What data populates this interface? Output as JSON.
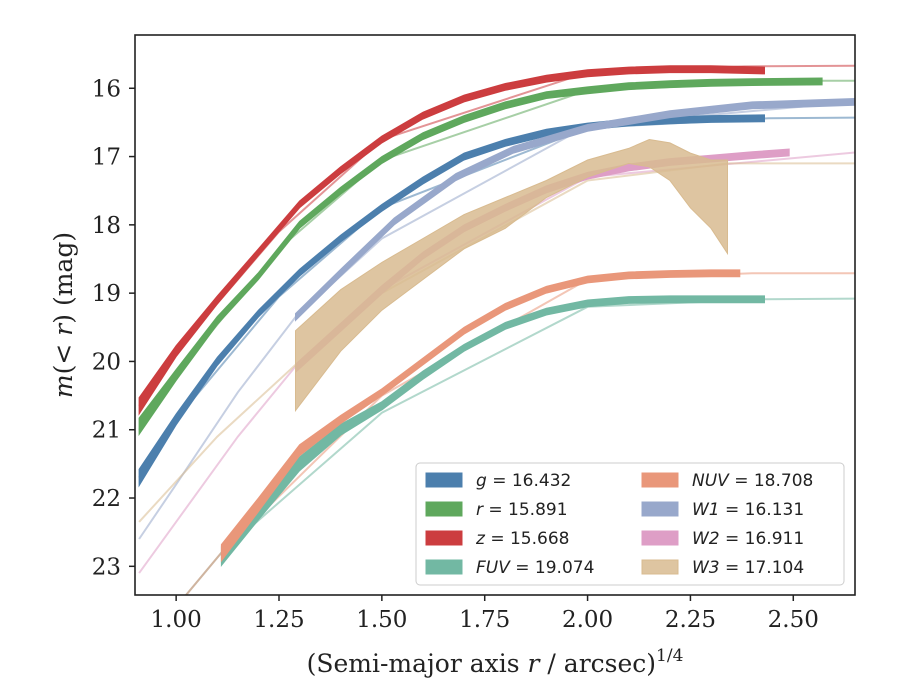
{
  "chart_data": {
    "type": "line",
    "xlabel": "(Semi-major axis r / arcsec)^1/4",
    "ylabel": "m(< r) (mag)",
    "xlim": [
      0.9,
      2.65
    ],
    "ylim": [
      23.42,
      15.22
    ],
    "y_inverted": true,
    "xticks": [
      "1.00",
      "1.25",
      "1.50",
      "1.75",
      "2.00",
      "2.25",
      "2.50"
    ],
    "yticks": [
      "16",
      "17",
      "18",
      "19",
      "20",
      "21",
      "22",
      "23"
    ],
    "grid": false,
    "legend_position": "lower-right",
    "series": [
      {
        "name": "g = 16.432",
        "sym": "g",
        "val": "16.432",
        "color": "#4c7fad",
        "extrap_x": [
          0.91,
          1.0,
          1.25,
          1.5,
          2.0,
          2.44,
          2.65
        ],
        "extrap_y": [
          21.7,
          20.85,
          19.05,
          17.75,
          16.58,
          16.44,
          16.43
        ],
        "x": [
          0.91,
          1.0,
          1.1,
          1.2,
          1.3,
          1.4,
          1.5,
          1.6,
          1.7,
          1.8,
          1.9,
          2.0,
          2.1,
          2.2,
          2.3,
          2.43
        ],
        "y": [
          21.7,
          20.85,
          20.0,
          19.3,
          18.7,
          18.2,
          17.75,
          17.35,
          17.0,
          16.8,
          16.65,
          16.56,
          16.5,
          16.47,
          16.45,
          16.44
        ],
        "band": [
          0.12,
          0.08,
          0.06,
          0.05,
          0.05,
          0.05,
          0.05,
          0.05,
          0.05,
          0.05,
          0.05,
          0.05,
          0.05,
          0.05,
          0.05,
          0.05
        ]
      },
      {
        "name": "r = 15.891",
        "sym": "r",
        "val": "15.891",
        "color": "#5fa85d",
        "extrap_x": [
          0.91,
          1.0,
          1.25,
          1.5,
          2.0,
          2.57,
          2.65
        ],
        "extrap_y": [
          21.0,
          20.2,
          18.35,
          17.05,
          16.03,
          15.89,
          15.89
        ],
        "x": [
          0.91,
          1.0,
          1.1,
          1.2,
          1.3,
          1.4,
          1.5,
          1.6,
          1.7,
          1.8,
          1.9,
          2.0,
          2.1,
          2.2,
          2.3,
          2.4,
          2.57
        ],
        "y": [
          20.95,
          20.2,
          19.4,
          18.75,
          18.0,
          17.5,
          17.05,
          16.7,
          16.45,
          16.25,
          16.1,
          16.03,
          15.97,
          15.94,
          15.92,
          15.91,
          15.9
        ],
        "band": [
          0.12,
          0.08,
          0.06,
          0.05,
          0.05,
          0.05,
          0.05,
          0.05,
          0.05,
          0.05,
          0.05,
          0.05,
          0.05,
          0.05,
          0.05,
          0.05,
          0.05
        ]
      },
      {
        "name": "z = 15.668",
        "sym": "z",
        "val": "15.668",
        "color": "#cc3d3f",
        "extrap_x": [
          0.91,
          1.0,
          1.25,
          1.5,
          2.0,
          2.38,
          2.65
        ],
        "extrap_y": [
          20.65,
          19.85,
          18.1,
          16.75,
          15.77,
          15.68,
          15.67
        ],
        "x": [
          0.91,
          1.0,
          1.1,
          1.2,
          1.3,
          1.4,
          1.5,
          1.6,
          1.7,
          1.8,
          1.9,
          2.0,
          2.1,
          2.2,
          2.3,
          2.43
        ],
        "y": [
          20.65,
          19.85,
          19.1,
          18.4,
          17.7,
          17.2,
          16.75,
          16.4,
          16.15,
          15.98,
          15.86,
          15.78,
          15.74,
          15.72,
          15.72,
          15.74
        ],
        "band": [
          0.12,
          0.08,
          0.06,
          0.05,
          0.05,
          0.05,
          0.05,
          0.05,
          0.05,
          0.05,
          0.05,
          0.05,
          0.05,
          0.05,
          0.05,
          0.05
        ]
      },
      {
        "name": "FUV = 19.074",
        "sym": "FUV",
        "val": "19.074",
        "color": "#72b8a3",
        "extrap_x": [
          1.02,
          1.11,
          1.5,
          2.0,
          2.43,
          2.65
        ],
        "extrap_y": [
          23.45,
          22.8,
          20.75,
          19.2,
          19.09,
          19.08
        ],
        "x": [
          1.11,
          1.2,
          1.3,
          1.4,
          1.5,
          1.6,
          1.7,
          1.8,
          1.9,
          2.0,
          2.1,
          2.2,
          2.3,
          2.43
        ],
        "y": [
          22.85,
          22.2,
          21.5,
          21.0,
          20.65,
          20.2,
          19.8,
          19.48,
          19.27,
          19.15,
          19.1,
          19.09,
          19.09,
          19.09
        ],
        "band": [
          0.14,
          0.12,
          0.1,
          0.08,
          0.06,
          0.06,
          0.05,
          0.05,
          0.05,
          0.05,
          0.05,
          0.05,
          0.05,
          0.05
        ]
      },
      {
        "name": "NUV = 18.708",
        "sym": "NUV",
        "val": "18.708",
        "color": "#e9977a",
        "extrap_x": [
          1.02,
          1.11,
          1.5,
          2.0,
          2.4,
          2.65
        ],
        "extrap_y": [
          23.45,
          22.8,
          20.5,
          18.8,
          18.71,
          18.71
        ],
        "x": [
          1.11,
          1.2,
          1.3,
          1.4,
          1.5,
          1.6,
          1.7,
          1.8,
          1.9,
          2.0,
          2.1,
          2.2,
          2.3,
          2.37
        ],
        "y": [
          22.8,
          22.1,
          21.3,
          20.85,
          20.45,
          20.0,
          19.55,
          19.2,
          18.95,
          18.8,
          18.74,
          18.72,
          18.71,
          18.71
        ],
        "band": [
          0.12,
          0.1,
          0.08,
          0.06,
          0.05,
          0.05,
          0.05,
          0.05,
          0.05,
          0.05,
          0.05,
          0.05,
          0.05,
          0.05
        ]
      },
      {
        "name": "W1 = 16.131",
        "sym": "W1",
        "val": "16.131",
        "color": "#98a8cb",
        "extrap_x": [
          0.91,
          1.0,
          1.15,
          1.29,
          1.5,
          2.0,
          2.65
        ],
        "extrap_y": [
          22.6,
          21.8,
          20.45,
          19.35,
          18.2,
          16.55,
          16.2
        ],
        "x": [
          1.29,
          1.4,
          1.53,
          1.68,
          1.82,
          2.0,
          2.2,
          2.4,
          2.65
        ],
        "y": [
          19.35,
          18.7,
          17.95,
          17.3,
          16.9,
          16.58,
          16.38,
          16.25,
          16.2
        ],
        "band": [
          0.05,
          0.05,
          0.05,
          0.05,
          0.05,
          0.05,
          0.05,
          0.05,
          0.05
        ]
      },
      {
        "name": "W2 = 16.911",
        "sym": "W2",
        "val": "16.911",
        "color": "#de9ec6",
        "extrap_x": [
          0.91,
          1.0,
          1.15,
          1.3,
          1.5,
          2.0,
          2.65
        ],
        "extrap_y": [
          23.1,
          22.35,
          21.1,
          20.0,
          18.95,
          17.3,
          16.94
        ],
        "x": [
          1.29,
          1.4,
          1.5,
          1.6,
          1.7,
          1.8,
          1.9,
          2.0,
          2.1,
          2.2,
          2.3,
          2.4,
          2.49
        ],
        "y": [
          20.1,
          19.5,
          18.95,
          18.45,
          18.05,
          17.75,
          17.48,
          17.28,
          17.16,
          17.08,
          17.03,
          16.98,
          16.94
        ],
        "band": [
          0.06,
          0.06,
          0.06,
          0.05,
          0.05,
          0.05,
          0.05,
          0.05,
          0.05,
          0.05,
          0.05,
          0.05,
          0.05
        ]
      },
      {
        "name": "W3 = 17.104",
        "sym": "W3",
        "val": "17.104",
        "color": "#d8bb90",
        "extrap_x": [
          0.91,
          1.1,
          1.29,
          1.5,
          2.0,
          2.34,
          2.65
        ],
        "extrap_y": [
          22.35,
          21.1,
          20.05,
          19.0,
          17.35,
          17.1,
          17.1
        ],
        "x": [
          1.29,
          1.4,
          1.5,
          1.6,
          1.7,
          1.8,
          1.9,
          2.0,
          2.1,
          2.15,
          2.2,
          2.25,
          2.3,
          2.34
        ],
        "y_upper": [
          19.55,
          18.95,
          18.55,
          18.2,
          17.85,
          17.6,
          17.35,
          17.05,
          16.88,
          16.75,
          16.8,
          16.95,
          17.05,
          17.05
        ],
        "y_lower": [
          20.72,
          19.85,
          19.25,
          18.8,
          18.35,
          18.05,
          17.6,
          17.3,
          17.1,
          17.15,
          17.35,
          17.75,
          18.05,
          18.42
        ]
      }
    ]
  }
}
